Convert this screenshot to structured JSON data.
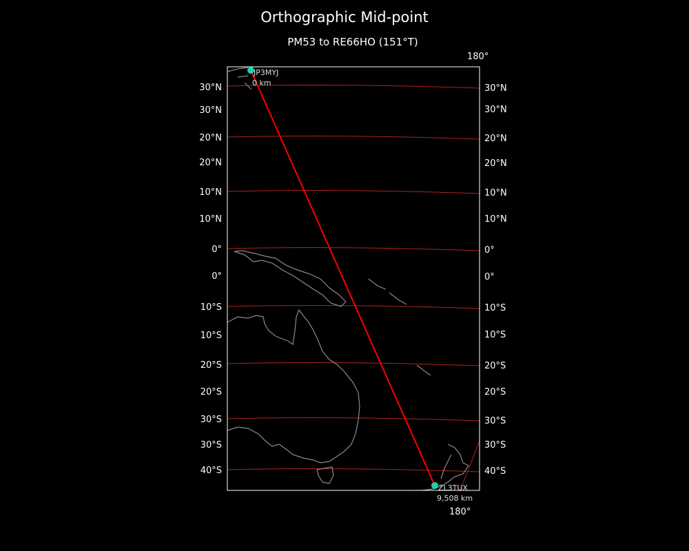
{
  "title": "Orthographic Mid-point",
  "subtitle": "PM53 to RE66HO (151°T)",
  "colors": {
    "background": "#000000",
    "route": "#ff0000",
    "graticule": "#b22222",
    "coastline": "#8c8c8c",
    "station": "#1dd3a7",
    "frame": "#ffffff"
  },
  "meridian_labels": {
    "top": "180°",
    "bottom": "180°"
  },
  "left_lat_labels": [
    "30°N",
    "30°N",
    "20°N",
    "20°N",
    "10°N",
    "10°N",
    "0°",
    "0°",
    "10°S",
    "10°S",
    "20°S",
    "20°S",
    "30°S",
    "30°S",
    "40°S"
  ],
  "right_lat_labels": [
    "30°N",
    "30°N",
    "20°N",
    "20°N",
    "10°N",
    "10°N",
    "0°",
    "0°",
    "10°S",
    "10°S",
    "20°S",
    "20°S",
    "30°S",
    "30°S",
    "40°S"
  ],
  "start": {
    "call": "JP3MYJ",
    "distance": "0 km"
  },
  "end": {
    "call": "ZL3TUX",
    "distance": "9,508 km"
  }
}
